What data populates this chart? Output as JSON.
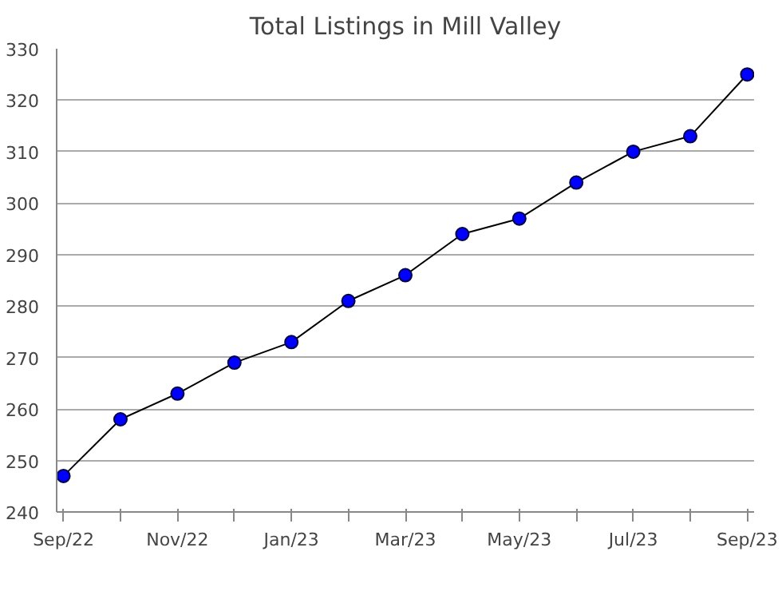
{
  "chart_data": {
    "type": "line",
    "title": "Total Listings in Mill Valley",
    "categories": [
      "Sep/22",
      null,
      "Nov/22",
      null,
      "Jan/23",
      null,
      "Mar/23",
      null,
      "May/23",
      null,
      "Jul/23",
      null,
      "Sep/23"
    ],
    "values": [
      247,
      258,
      263,
      269,
      273,
      281,
      286,
      294,
      297,
      304,
      310,
      313,
      325
    ],
    "color": "#0000ff",
    "marker": "circle",
    "line_style": "solid",
    "ylim": [
      240,
      330
    ],
    "yticks": [
      240,
      250,
      260,
      270,
      280,
      290,
      300,
      310,
      320,
      330
    ],
    "grid": "y"
  }
}
